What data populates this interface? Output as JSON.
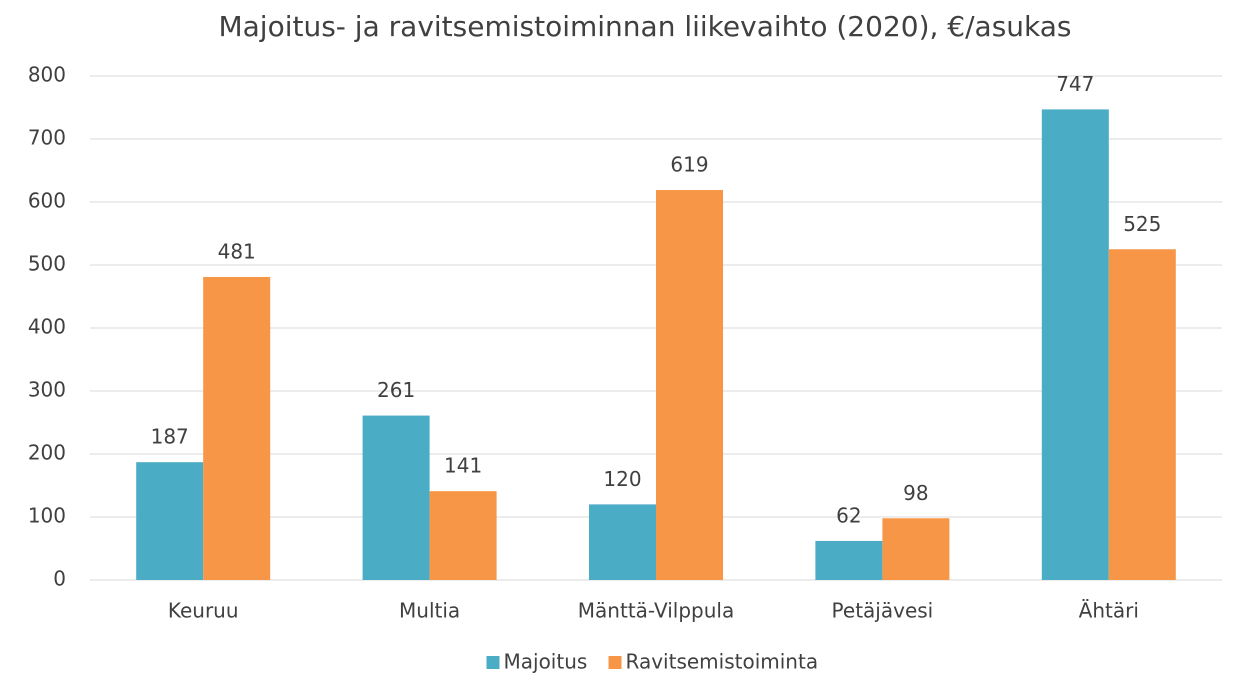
{
  "chart_data": {
    "type": "bar",
    "title": "Majoitus- ja ravitsemistoiminnan liikevaihto (2020), €/asukas",
    "categories": [
      "Keuruu",
      "Multia",
      "Mänttä-Vilppula",
      "Petäjävesi",
      "Ähtäri"
    ],
    "series": [
      {
        "name": "Majoitus",
        "color": "#4bacc6",
        "values": [
          187,
          261,
          120,
          62,
          747
        ]
      },
      {
        "name": "Ravitsemistoiminta",
        "color": "#f79646",
        "values": [
          481,
          141,
          619,
          98,
          525
        ]
      }
    ],
    "ylim": [
      0,
      800
    ],
    "yticks": [
      0,
      100,
      200,
      300,
      400,
      500,
      600,
      700,
      800
    ],
    "grid": true,
    "legend": "bottom"
  }
}
